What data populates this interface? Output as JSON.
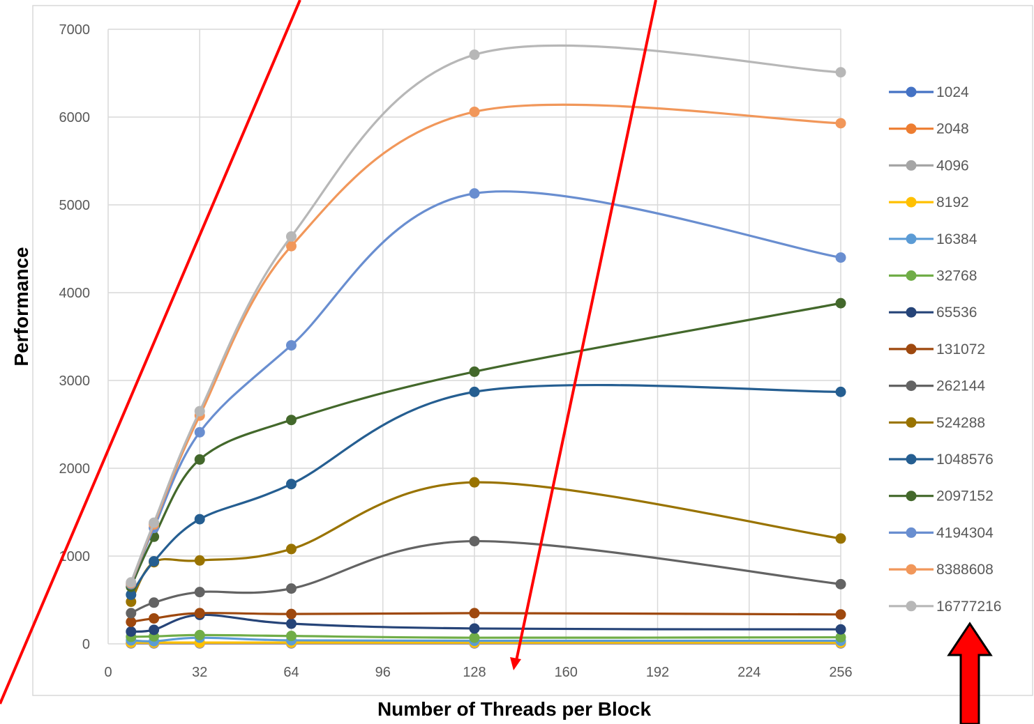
{
  "colors": {
    "grid": "#d9d9d9",
    "frame": "#d9d9d9",
    "annotation_red": "#ff0000",
    "arrow_outline": "#000000"
  },
  "chart_data": {
    "type": "line",
    "title": "",
    "xlabel": "Number of Threads per Block",
    "ylabel": "Performance",
    "xlim": [
      0,
      256
    ],
    "ylim": [
      0,
      7000
    ],
    "x_ticks": [
      0,
      32,
      64,
      96,
      128,
      160,
      192,
      224,
      256
    ],
    "y_ticks": [
      0,
      1000,
      2000,
      3000,
      4000,
      5000,
      6000,
      7000
    ],
    "grid": true,
    "smooth": true,
    "legend_position": "right",
    "x": [
      8,
      16,
      32,
      64,
      128,
      256
    ],
    "series": [
      {
        "name": "1024",
        "color": "#4472c4",
        "values": [
          5,
          5,
          5,
          5,
          5,
          5
        ]
      },
      {
        "name": "2048",
        "color": "#ed7d31",
        "values": [
          8,
          8,
          8,
          8,
          8,
          8
        ]
      },
      {
        "name": "4096",
        "color": "#a5a5a5",
        "values": [
          10,
          10,
          10,
          10,
          10,
          10
        ]
      },
      {
        "name": "8192",
        "color": "#ffc000",
        "values": [
          15,
          15,
          15,
          15,
          15,
          15
        ]
      },
      {
        "name": "16384",
        "color": "#5b9bd5",
        "values": [
          40,
          30,
          70,
          40,
          35,
          35
        ]
      },
      {
        "name": "32768",
        "color": "#70ad47",
        "values": [
          80,
          85,
          100,
          90,
          70,
          75
        ]
      },
      {
        "name": "65536",
        "color": "#264478",
        "values": [
          140,
          160,
          330,
          230,
          175,
          165
        ]
      },
      {
        "name": "131072",
        "color": "#9e480e",
        "values": [
          250,
          290,
          350,
          340,
          350,
          335
        ]
      },
      {
        "name": "262144",
        "color": "#636363",
        "values": [
          350,
          470,
          590,
          630,
          1170,
          680
        ]
      },
      {
        "name": "524288",
        "color": "#997300",
        "values": [
          480,
          930,
          950,
          1080,
          1840,
          1200
        ]
      },
      {
        "name": "1048576",
        "color": "#255e91",
        "values": [
          560,
          940,
          1420,
          1820,
          2870,
          2870
        ]
      },
      {
        "name": "2097152",
        "color": "#43682b",
        "values": [
          650,
          1220,
          2100,
          2550,
          3100,
          3880
        ]
      },
      {
        "name": "4194304",
        "color": "#698ed0",
        "values": [
          680,
          1320,
          2410,
          3400,
          5130,
          4400
        ]
      },
      {
        "name": "8388608",
        "color": "#f1975a",
        "values": [
          690,
          1360,
          2600,
          4530,
          6060,
          5930
        ]
      },
      {
        "name": "16777216",
        "color": "#b7b7b7",
        "values": [
          700,
          1380,
          2650,
          4640,
          6710,
          6510
        ]
      }
    ]
  }
}
